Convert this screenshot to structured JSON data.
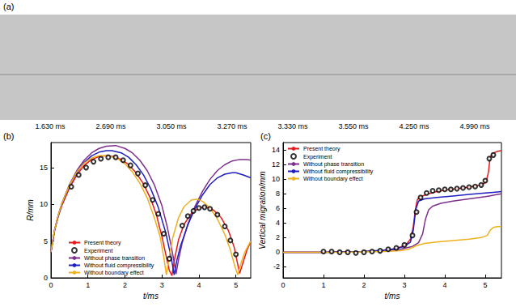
{
  "chart_data": [
    {
      "type": "image_strip",
      "title": "(a)",
      "categories": [
        "1.630 ms",
        "2.690 ms",
        "3.050 ms",
        "3.270 ms",
        "3.330 ms",
        "3.550 ms",
        "4.250 ms",
        "4.990 ms"
      ]
    },
    {
      "type": "line",
      "title": "(b)",
      "xlabel": "t/ms",
      "ylabel": "R/mm",
      "xlim": [
        0,
        5.4
      ],
      "xticks": [
        0,
        1,
        2,
        3,
        4,
        5
      ],
      "ylim": [
        0,
        18.4
      ],
      "yticks": [
        0,
        5,
        10,
        15
      ],
      "grid": false,
      "legend": "lower left",
      "series": [
        {
          "name": "Present theory",
          "type": "line",
          "color": "#e41a1c",
          "x": [
            0,
            0.1,
            0.2,
            0.3,
            0.5,
            0.7,
            0.9,
            1.1,
            1.3,
            1.5,
            1.7,
            1.9,
            2.1,
            2.3,
            2.5,
            2.7,
            2.85,
            3.0,
            3.1,
            3.2,
            3.27,
            3.35,
            3.45,
            3.6,
            3.8,
            4.0,
            4.2,
            4.4,
            4.6,
            4.8,
            4.95,
            5.05,
            5.1,
            5.2,
            5.3,
            5.4
          ],
          "values": [
            3.5,
            6.5,
            8.4,
            9.9,
            12.2,
            14.0,
            15.3,
            16.1,
            16.5,
            16.6,
            16.5,
            16.1,
            15.4,
            14.3,
            12.8,
            10.7,
            8.6,
            5.6,
            3.3,
            1.0,
            0.3,
            2.8,
            5.2,
            7.3,
            8.8,
            9.5,
            9.6,
            9.2,
            8.2,
            6.4,
            4.2,
            1.8,
            0.6,
            2.2,
            3.8,
            4.9
          ]
        },
        {
          "name": "Experiment",
          "type": "scatter",
          "color": "#000000",
          "marker": "open circle",
          "x": [
            0.55,
            0.75,
            0.95,
            1.15,
            1.35,
            1.55,
            1.75,
            1.95,
            2.15,
            2.35,
            2.55,
            2.75,
            2.9,
            3.05,
            3.2,
            3.55,
            3.7,
            3.85,
            4.0,
            4.15,
            4.3,
            4.5,
            4.7,
            4.85,
            5.0
          ],
          "values": [
            12.4,
            14.0,
            15.0,
            15.8,
            16.2,
            16.4,
            16.4,
            16.0,
            15.3,
            14.2,
            12.6,
            10.6,
            8.7,
            6.0,
            2.6,
            7.1,
            8.4,
            9.1,
            9.5,
            9.6,
            9.4,
            8.6,
            7.0,
            5.1,
            3.2
          ]
        },
        {
          "name": "Without phase transition",
          "type": "line",
          "color": "#7e2f8e",
          "x": [
            0,
            0.1,
            0.2,
            0.3,
            0.5,
            0.7,
            0.9,
            1.1,
            1.3,
            1.5,
            1.75,
            2.0,
            2.2,
            2.4,
            2.6,
            2.8,
            3.0,
            3.15,
            3.3,
            3.38,
            3.45,
            3.55,
            3.7,
            3.9,
            4.1,
            4.3,
            4.5,
            4.7,
            4.9,
            5.1,
            5.3,
            5.4
          ],
          "values": [
            3.5,
            6.6,
            8.6,
            10.2,
            12.7,
            14.6,
            16.0,
            17.0,
            17.6,
            17.9,
            18.0,
            17.6,
            17.0,
            16.0,
            14.6,
            12.6,
            9.8,
            6.8,
            3.0,
            0.5,
            2.5,
            4.8,
            7.3,
            9.8,
            11.8,
            13.4,
            14.6,
            15.4,
            15.9,
            16.1,
            16.1,
            16.0
          ]
        },
        {
          "name": "Without fluid compressibility",
          "type": "line",
          "color": "#1f1fbf",
          "x": [
            0,
            0.1,
            0.2,
            0.3,
            0.5,
            0.7,
            0.9,
            1.1,
            1.3,
            1.5,
            1.65,
            1.9,
            2.1,
            2.3,
            2.5,
            2.7,
            2.9,
            3.1,
            3.25,
            3.33,
            3.4,
            3.5,
            3.7,
            3.9,
            4.1,
            4.3,
            4.5,
            4.7,
            4.9,
            5.0,
            5.2,
            5.4
          ],
          "values": [
            3.5,
            6.5,
            8.5,
            10.1,
            12.5,
            14.3,
            15.7,
            16.6,
            17.1,
            17.3,
            17.3,
            17.0,
            16.4,
            15.4,
            14.0,
            12.1,
            9.6,
            6.2,
            2.8,
            0.4,
            2.3,
            4.3,
            7.2,
            9.5,
            11.3,
            12.7,
            13.6,
            14.1,
            14.3,
            14.3,
            14.0,
            13.6
          ]
        },
        {
          "name": "Without boundary effect",
          "type": "line",
          "color": "#edb120",
          "x": [
            0,
            0.1,
            0.2,
            0.3,
            0.5,
            0.7,
            0.9,
            1.1,
            1.3,
            1.55,
            1.8,
            2.0,
            2.2,
            2.4,
            2.6,
            2.8,
            2.95,
            3.05,
            3.12,
            3.2,
            3.3,
            3.45,
            3.6,
            3.8,
            3.95,
            4.1,
            4.3,
            4.5,
            4.7,
            4.85,
            4.97,
            5.05,
            5.15,
            5.25,
            5.4
          ],
          "values": [
            3.5,
            6.6,
            8.6,
            10.2,
            12.6,
            14.4,
            15.6,
            16.3,
            16.6,
            16.6,
            16.2,
            15.5,
            14.4,
            12.9,
            10.9,
            8.1,
            5.6,
            2.8,
            0.4,
            3.0,
            5.6,
            8.2,
            9.7,
            10.6,
            10.7,
            10.4,
            9.5,
            8.0,
            5.9,
            3.8,
            1.6,
            0.4,
            2.2,
            3.6,
            5.0
          ]
        }
      ]
    },
    {
      "type": "line",
      "title": "(c)",
      "xlabel": "t/ms",
      "ylabel": "Vertical migration/mm",
      "xlim": [
        0,
        5.4
      ],
      "xticks": [
        0,
        1,
        2,
        3,
        4,
        5
      ],
      "ylim": [
        -3.5,
        15
      ],
      "yticks": [
        -2,
        0,
        2,
        4,
        6,
        8,
        10,
        12,
        14
      ],
      "grid": false,
      "legend": "upper left",
      "series": [
        {
          "name": "Present theory",
          "type": "line",
          "color": "#e41a1c",
          "x": [
            0,
            0.5,
            1.0,
            1.5,
            2.0,
            2.4,
            2.7,
            2.9,
            3.05,
            3.15,
            3.22,
            3.27,
            3.32,
            3.4,
            3.6,
            3.8,
            4.0,
            4.3,
            4.6,
            4.9,
            5.02,
            5.08,
            5.12,
            5.18,
            5.3,
            5.4
          ],
          "values": [
            0,
            0,
            0,
            0.05,
            0.1,
            0.2,
            0.4,
            0.7,
            1.1,
            1.8,
            3.5,
            5.8,
            7.2,
            7.6,
            8.0,
            8.3,
            8.5,
            8.7,
            8.9,
            9.2,
            9.6,
            11.0,
            13.0,
            13.5,
            13.8,
            13.9
          ]
        },
        {
          "name": "Experiment",
          "type": "scatter",
          "color": "#000000",
          "marker": "open circle",
          "x": [
            1.0,
            1.2,
            1.4,
            1.6,
            1.8,
            2.0,
            2.2,
            2.4,
            2.6,
            2.8,
            3.0,
            3.2,
            3.3,
            3.4,
            3.55,
            3.7,
            3.85,
            4.0,
            4.15,
            4.3,
            4.45,
            4.6,
            4.75,
            4.9,
            5.0,
            5.1,
            5.2
          ],
          "values": [
            0.1,
            0.1,
            0,
            0,
            -0.1,
            0,
            0.1,
            0.2,
            0.4,
            0.6,
            1.0,
            2.3,
            5.5,
            7.5,
            8.1,
            8.4,
            8.5,
            8.6,
            8.6,
            8.7,
            8.8,
            8.9,
            9.0,
            9.2,
            9.8,
            12.8,
            13.3
          ]
        },
        {
          "name": "Without phase transition",
          "type": "line",
          "color": "#7e2f8e",
          "x": [
            0,
            0.5,
            1.0,
            1.5,
            2.0,
            2.5,
            2.9,
            3.2,
            3.35,
            3.45,
            3.52,
            3.6,
            3.7,
            3.9,
            4.2,
            4.6,
            5.0,
            5.1,
            5.2,
            5.3,
            5.4
          ],
          "values": [
            0,
            0,
            0,
            0.05,
            0.1,
            0.2,
            0.4,
            0.8,
            1.3,
            2.5,
            4.5,
            5.8,
            6.3,
            6.7,
            7.0,
            7.3,
            7.6,
            7.7,
            7.8,
            7.9,
            8.0
          ]
        },
        {
          "name": "Without fluid compressibility",
          "type": "line",
          "color": "#1f1fbf",
          "x": [
            0,
            0.5,
            1.0,
            1.5,
            2.0,
            2.5,
            2.8,
            3.0,
            3.15,
            3.22,
            3.28,
            3.35,
            3.5,
            3.8,
            4.2,
            4.6,
            5.0,
            5.2,
            5.4
          ],
          "values": [
            0,
            0,
            0,
            0.05,
            0.1,
            0.3,
            0.5,
            0.8,
            1.4,
            3.0,
            5.8,
            7.0,
            7.3,
            7.5,
            7.7,
            7.9,
            8.1,
            8.2,
            8.3
          ]
        },
        {
          "name": "Without boundary effect",
          "type": "line",
          "color": "#edb120",
          "x": [
            0,
            0.5,
            1.0,
            1.5,
            2.0,
            2.5,
            2.9,
            3.1,
            3.3,
            3.5,
            3.8,
            4.2,
            4.6,
            4.9,
            5.05,
            5.12,
            5.2,
            5.3,
            5.4
          ],
          "values": [
            0,
            0,
            0,
            0,
            0.05,
            0.1,
            0.2,
            0.4,
            0.9,
            1.2,
            1.4,
            1.6,
            1.8,
            2.0,
            2.3,
            3.0,
            3.4,
            3.5,
            3.5
          ]
        }
      ]
    }
  ]
}
